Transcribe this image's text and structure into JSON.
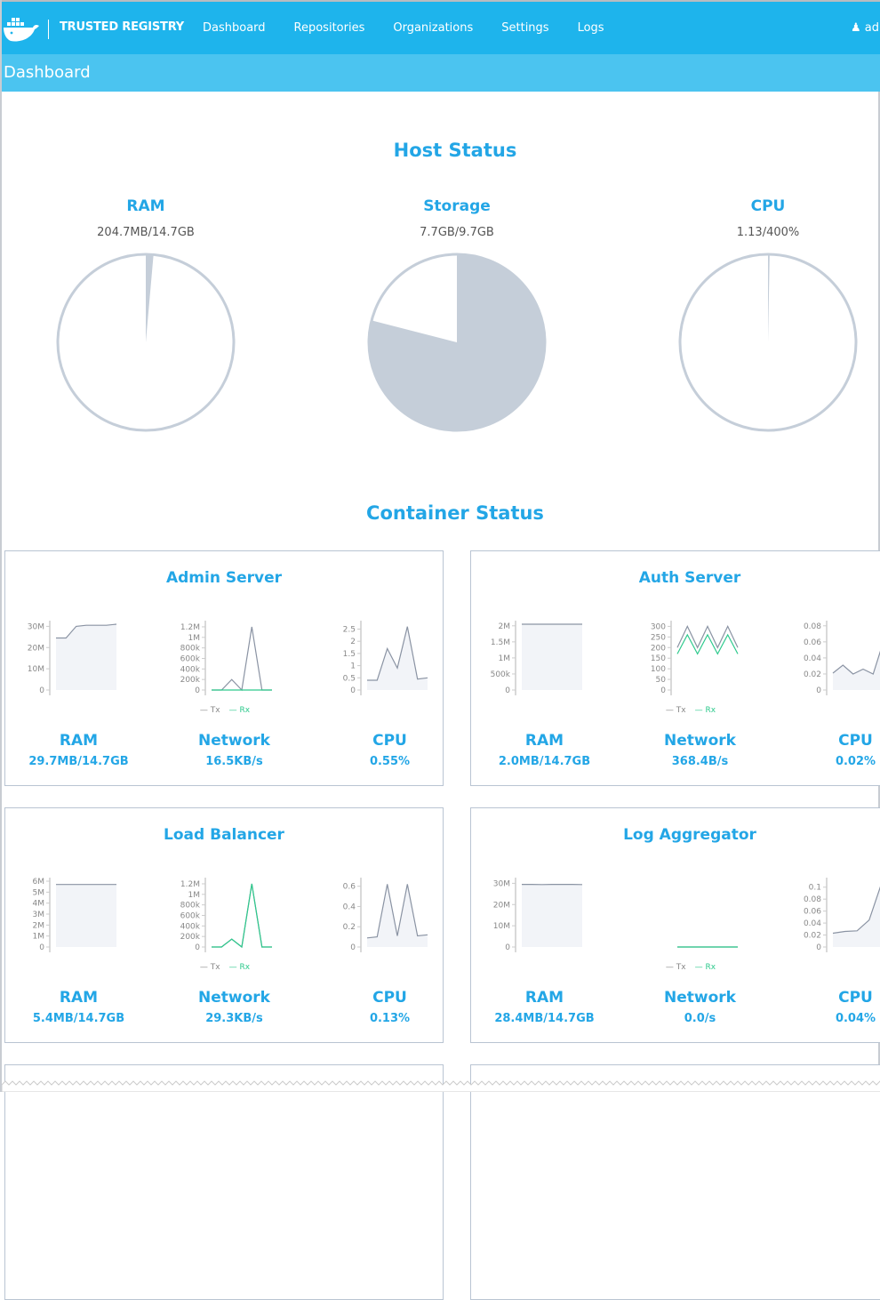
{
  "nav": {
    "brand": "TRUSTED REGISTRY",
    "links": [
      "Dashboard",
      "Repositories",
      "Organizations",
      "Settings",
      "Logs"
    ],
    "user": "adr",
    "colors": {
      "bar": "#1eb4ec",
      "subbar": "#4bc4f0"
    }
  },
  "page_title": "Dashboard",
  "host_status": {
    "title": "Host Status",
    "items": [
      {
        "label": "RAM",
        "value": "204.7MB/14.7GB",
        "fraction": 0.014
      },
      {
        "label": "Storage",
        "value": "7.7GB/9.7GB",
        "fraction": 0.79
      },
      {
        "label": "CPU",
        "value": "1.13/400%",
        "fraction": 0.003
      }
    ]
  },
  "container_status": {
    "title": "Container Status",
    "legend": {
      "tx": "Tx",
      "rx": "Rx"
    },
    "stat_labels": {
      "ram": "RAM",
      "network": "Network",
      "cpu": "CPU"
    },
    "cards": [
      {
        "title": "Admin Server",
        "ram": "29.7MB/14.7GB",
        "network": "16.5KB/s",
        "cpu": "0.55%",
        "charts": {
          "ram": {
            "ymax": 31,
            "ticks": [
              [
                0,
                "0"
              ],
              [
                10,
                "10M"
              ],
              [
                20,
                "20M"
              ],
              [
                30,
                "30M"
              ]
            ],
            "series": [
              {
                "values": [
                  24.5,
                  24.5,
                  30,
                  30.5,
                  30.5,
                  30.5,
                  31
                ],
                "fill": true
              }
            ]
          },
          "network": {
            "ymax": 1.25,
            "ticks": [
              [
                0,
                "0"
              ],
              [
                0.2,
                "200k"
              ],
              [
                0.4,
                "400k"
              ],
              [
                0.6,
                "600k"
              ],
              [
                0.8,
                "800k"
              ],
              [
                1,
                "1M"
              ],
              [
                1.2,
                "1.2M"
              ]
            ],
            "series": [
              {
                "values": [
                  0,
                  0,
                  0.2,
                  0,
                  1.2,
                  0,
                  0
                ]
              },
              {
                "values": [
                  0,
                  0,
                  0,
                  0,
                  0,
                  0,
                  0
                ],
                "rx": true
              }
            ]
          },
          "cpu": {
            "ymax": 2.7,
            "ticks": [
              [
                0,
                "0"
              ],
              [
                0.5,
                "0.5"
              ],
              [
                1,
                "1"
              ],
              [
                1.5,
                "1.5"
              ],
              [
                2,
                "2"
              ],
              [
                2.5,
                "2.5"
              ]
            ],
            "series": [
              {
                "values": [
                  0.4,
                  0.4,
                  1.7,
                  0.9,
                  2.6,
                  0.45,
                  0.5
                ],
                "fill": true
              }
            ]
          }
        }
      },
      {
        "title": "Auth Server",
        "ram": "2.0MB/14.7GB",
        "network": "368.4B/s",
        "cpu": "0.02%",
        "charts": {
          "ram": {
            "ymax": 2.05,
            "ticks": [
              [
                0,
                "0"
              ],
              [
                0.5,
                "500k"
              ],
              [
                1,
                "1M"
              ],
              [
                1.5,
                "1.5M"
              ],
              [
                2,
                "2M"
              ]
            ],
            "series": [
              {
                "values": [
                  2.05,
                  2.05,
                  2.05,
                  2.05,
                  2.05,
                  2.05,
                  2.05
                ],
                "fill": true
              }
            ]
          },
          "network": {
            "ymax": 310,
            "ticks": [
              [
                0,
                "0"
              ],
              [
                50,
                "50"
              ],
              [
                100,
                "100"
              ],
              [
                150,
                "150"
              ],
              [
                200,
                "200"
              ],
              [
                250,
                "250"
              ],
              [
                300,
                "300"
              ]
            ],
            "series": [
              {
                "values": [
                  200,
                  300,
                  200,
                  300,
                  200,
                  300,
                  200
                ]
              },
              {
                "values": [
                  170,
                  260,
                  170,
                  260,
                  170,
                  260,
                  170
                ],
                "rx": true
              }
            ]
          },
          "cpu": {
            "ymax": 0.082,
            "ticks": [
              [
                0,
                "0"
              ],
              [
                0.02,
                "0.02"
              ],
              [
                0.04,
                "0.04"
              ],
              [
                0.06,
                "0.06"
              ],
              [
                0.08,
                "0.08"
              ]
            ],
            "series": [
              {
                "values": [
                  0.021,
                  0.031,
                  0.02,
                  0.026,
                  0.02,
                  0.06,
                  0.065
                ],
                "fill": true
              }
            ]
          }
        }
      },
      {
        "title": "Load Balancer",
        "ram": "5.4MB/14.7GB",
        "network": "29.3KB/s",
        "cpu": "0.13%",
        "charts": {
          "ram": {
            "ymax": 6,
            "ticks": [
              [
                0,
                "0"
              ],
              [
                1,
                "1M"
              ],
              [
                2,
                "2M"
              ],
              [
                3,
                "3M"
              ],
              [
                4,
                "4M"
              ],
              [
                5,
                "5M"
              ],
              [
                6,
                "6M"
              ]
            ],
            "series": [
              {
                "values": [
                  5.7,
                  5.7,
                  5.7,
                  5.7,
                  5.7,
                  5.7,
                  5.7
                ],
                "fill": true
              }
            ]
          },
          "network": {
            "ymax": 1.25,
            "ticks": [
              [
                0,
                "0"
              ],
              [
                0.2,
                "200k"
              ],
              [
                0.4,
                "400k"
              ],
              [
                0.6,
                "600k"
              ],
              [
                0.8,
                "800k"
              ],
              [
                1,
                "1M"
              ],
              [
                1.2,
                "1.2M"
              ]
            ],
            "series": [
              {
                "values": [
                  0,
                  0,
                  0.15,
                  0,
                  1.2,
                  0,
                  0
                ]
              },
              {
                "values": [
                  0,
                  0,
                  0.15,
                  0,
                  1.2,
                  0,
                  0
                ],
                "rx": true
              }
            ]
          },
          "cpu": {
            "ymax": 0.65,
            "ticks": [
              [
                0,
                "0"
              ],
              [
                0.2,
                "0.2"
              ],
              [
                0.4,
                "0.4"
              ],
              [
                0.6,
                "0.6"
              ]
            ],
            "series": [
              {
                "values": [
                  0.09,
                  0.1,
                  0.62,
                  0.11,
                  0.62,
                  0.11,
                  0.12
                ],
                "fill": true
              }
            ]
          }
        }
      },
      {
        "title": "Log Aggregator",
        "ram": "28.4MB/14.7GB",
        "network": "0.0/s",
        "cpu": "0.04%",
        "charts": {
          "ram": {
            "ymax": 31,
            "ticks": [
              [
                0,
                "0"
              ],
              [
                10,
                "10M"
              ],
              [
                20,
                "20M"
              ],
              [
                30,
                "30M"
              ]
            ],
            "series": [
              {
                "values": [
                  29.5,
                  29.5,
                  29.4,
                  29.5,
                  29.5,
                  29.5,
                  29.4
                ],
                "fill": true
              }
            ]
          },
          "network": {
            "ymax": 1,
            "ticks": [],
            "series": [
              {
                "values": [
                  0,
                  0,
                  0,
                  0,
                  0,
                  0,
                  0
                ]
              },
              {
                "values": [
                  0,
                  0,
                  0,
                  0,
                  0,
                  0,
                  0
                ],
                "rx": true
              }
            ]
          },
          "cpu": {
            "ymax": 0.11,
            "ticks": [
              [
                0,
                "0"
              ],
              [
                0.02,
                "0.02"
              ],
              [
                0.04,
                "0.04"
              ],
              [
                0.06,
                "0.06"
              ],
              [
                0.08,
                "0.08"
              ],
              [
                0.1,
                "0.1"
              ]
            ],
            "series": [
              {
                "values": [
                  0.023,
                  0.026,
                  0.027,
                  0.045,
                  0.105,
                  0.05
                ],
                "fill": true
              }
            ]
          }
        }
      },
      {
        "title": ""
      },
      {
        "title": ""
      }
    ]
  },
  "colors": {
    "accent": "#23a6e6",
    "pie": "#c5ced9",
    "tx": "#8a93a3",
    "rx": "#2dc98c"
  }
}
